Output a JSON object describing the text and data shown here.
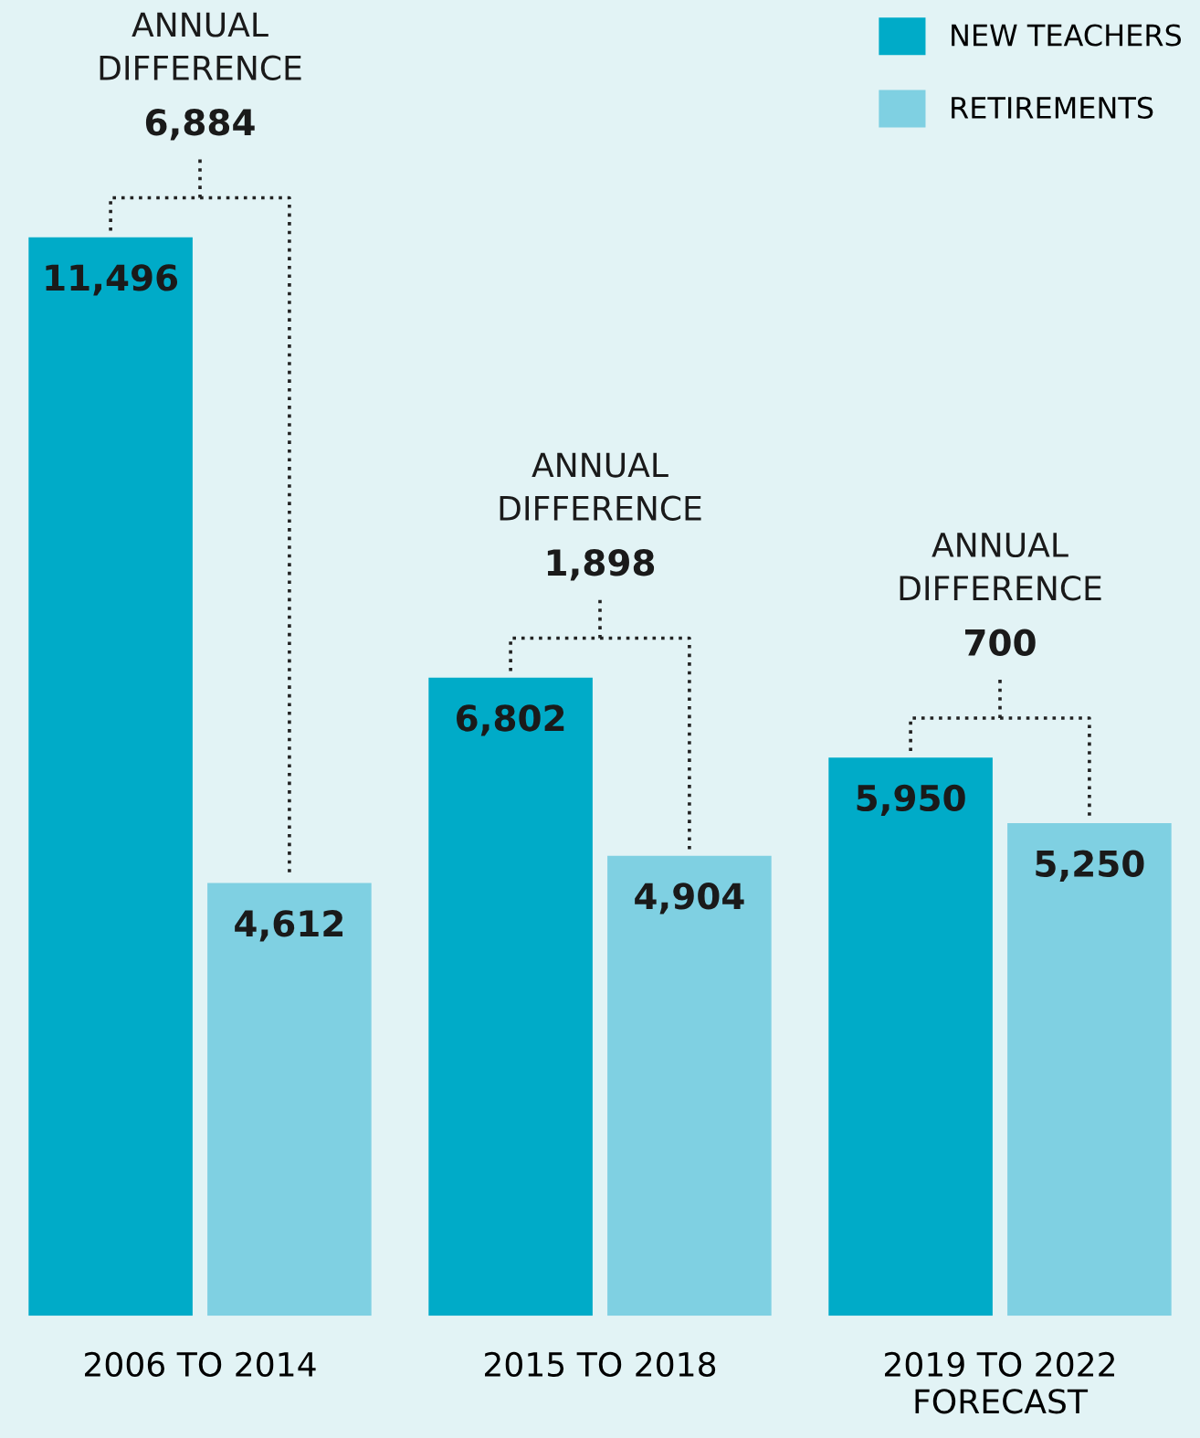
{
  "chart_data": {
    "type": "bar",
    "categories": [
      "2006 TO 2014",
      "2015 TO 2018",
      "2019 TO 2022\nFORECAST"
    ],
    "series": [
      {
        "name": "NEW TEACHERS",
        "color": "#00abc8",
        "values": [
          11496,
          6802,
          5950
        ],
        "value_labels": [
          "11,496",
          "6,802",
          "5,950"
        ]
      },
      {
        "name": "RETIREMENTS",
        "color": "#7fd0e2",
        "values": [
          4612,
          4904,
          5250
        ],
        "value_labels": [
          "4,612",
          "4,904",
          "5,250"
        ]
      }
    ],
    "annotations": [
      "ANNUAL\nDIFFERENCE",
      {
        "text": "6,884",
        "x": "2006 TO 2014",
        "y": 11496
      },
      "ANNUAL\nDIFFERENCE",
      {
        "text": "1,898",
        "x": "2015 TO 2018",
        "y": 6802
      },
      "ANNUAL\nDIFFERENCE",
      {
        "text": "700",
        "x": "2019 TO 2022\nFORECAST",
        "y": 5950
      }
    ],
    "legend": "top right",
    "tick_labels": "x",
    "grid": false
  }
}
